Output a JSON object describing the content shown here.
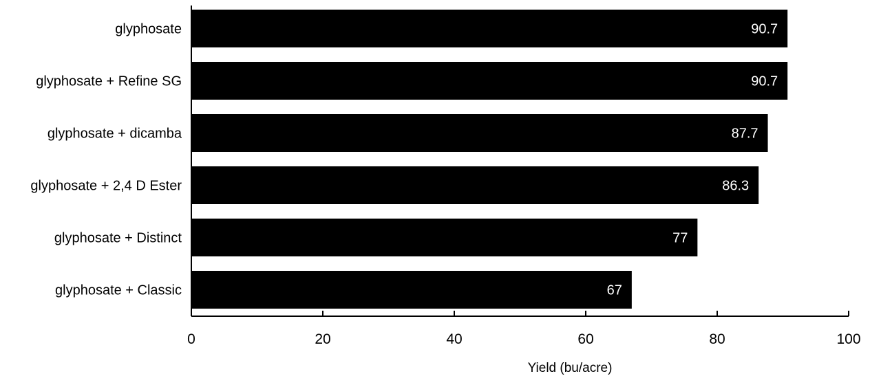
{
  "chart_data": {
    "type": "bar",
    "orientation": "horizontal",
    "categories": [
      "glyphosate",
      "glyphosate + Refine SG",
      "glyphosate + dicamba",
      "glyphosate + 2,4 D Ester",
      "glyphosate + Distinct",
      "glyphosate + Classic"
    ],
    "values": [
      90.7,
      90.7,
      87.7,
      86.3,
      77,
      67
    ],
    "data_labels": [
      "90.7",
      "90.7",
      "87.7",
      "86.3",
      "77",
      "67"
    ],
    "xlabel": "Yield (bu/acre)",
    "xlim": [
      0,
      100
    ],
    "xticks": [
      0,
      20,
      40,
      60,
      80,
      100
    ],
    "xtick_labels": [
      "0",
      "20",
      "40",
      "60",
      "80",
      "100"
    ],
    "grid": false,
    "colors": {
      "bar": "#000000",
      "value_label": "#ffffff",
      "axis": "#000000"
    }
  }
}
